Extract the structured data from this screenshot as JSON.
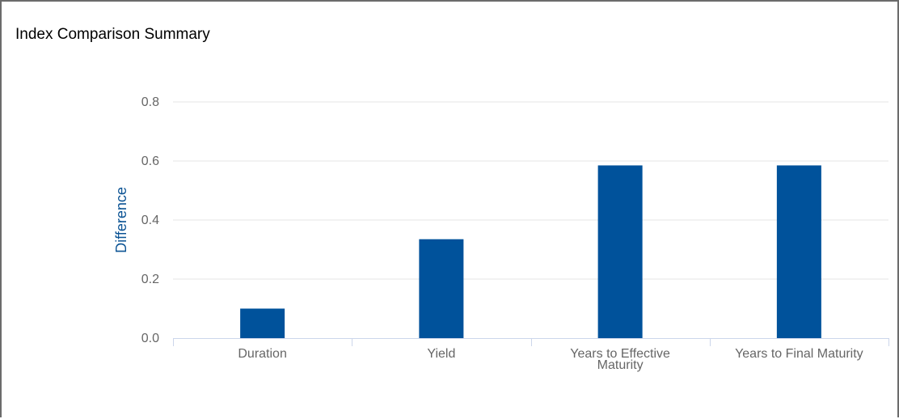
{
  "panel": {
    "title": "Index Comparison Summary"
  },
  "chart_data": {
    "type": "bar",
    "categories": [
      "Duration",
      "Yield",
      "Years to Effective Maturity",
      "Years to Final Maturity"
    ],
    "category_lines": [
      [
        "Duration"
      ],
      [
        "Yield"
      ],
      [
        "Years to Effective",
        "Maturity"
      ],
      [
        "Years to Final Maturity"
      ]
    ],
    "values": [
      0.1,
      0.335,
      0.585,
      0.585
    ],
    "ylabel": "Difference",
    "xlabel": "",
    "ylim": [
      0,
      0.8
    ],
    "yticks": [
      "0.0",
      "0.2",
      "0.4",
      "0.6",
      "0.8"
    ],
    "grid": true,
    "legend": "none",
    "bar_color": "#00529b",
    "grid_color": "#e6e6e6",
    "axis_line_color": "#ccd6eb"
  }
}
